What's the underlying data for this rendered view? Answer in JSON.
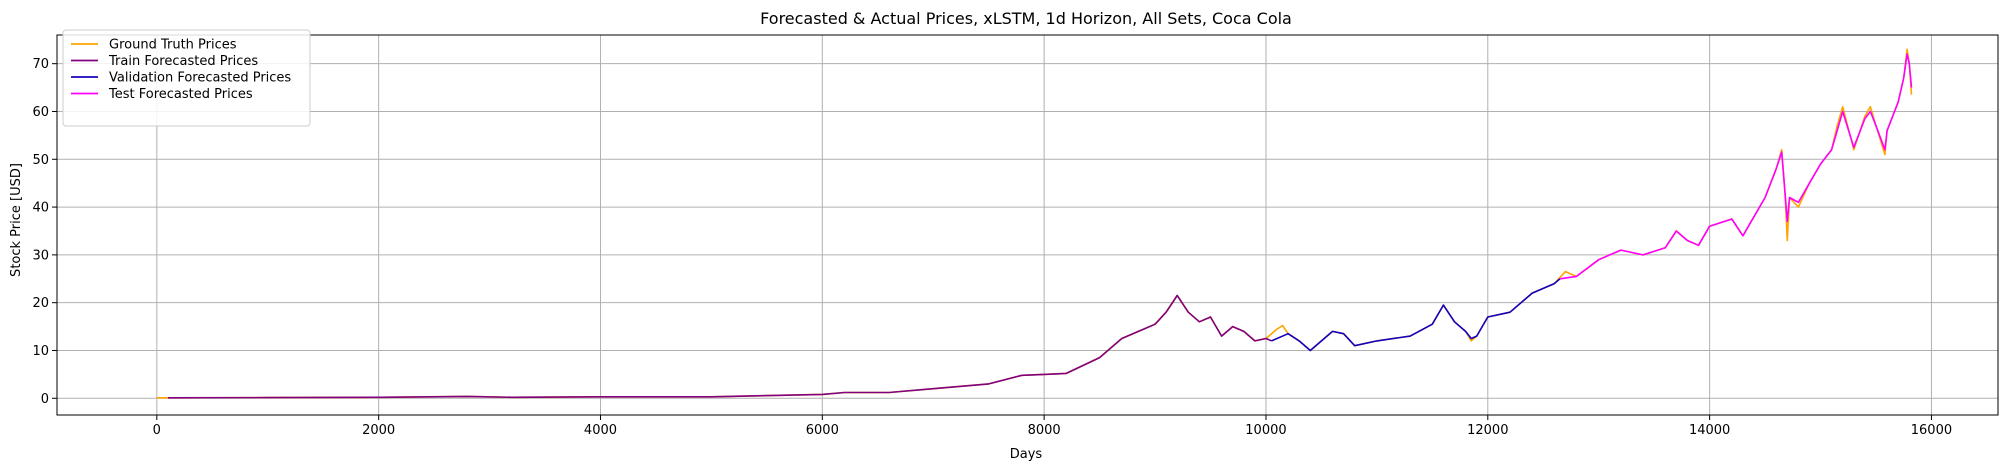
{
  "chart_data": {
    "type": "line",
    "title": "Forecasted & Actual Prices, xLSTM, 1d Horizon, All Sets, Coca Cola",
    "xlabel": "Days",
    "ylabel": "Stock Price [USD]",
    "xlim": [
      -900,
      16600
    ],
    "ylim": [
      -3.5,
      76
    ],
    "x_ticks": [
      0,
      2000,
      4000,
      6000,
      8000,
      10000,
      12000,
      14000,
      16000
    ],
    "y_ticks": [
      0,
      10,
      20,
      30,
      40,
      50,
      60,
      70
    ],
    "grid": true,
    "legend_position": "top-left",
    "series": [
      {
        "name": "Ground Truth Prices",
        "color": "#FFA500",
        "points": [
          [
            0,
            0.1
          ],
          [
            150,
            0.1
          ],
          [
            1000,
            0.15
          ],
          [
            2000,
            0.2
          ],
          [
            2800,
            0.4
          ],
          [
            3200,
            0.2
          ],
          [
            4000,
            0.3
          ],
          [
            5000,
            0.3
          ],
          [
            6000,
            0.8
          ],
          [
            6200,
            1.2
          ],
          [
            6600,
            1.2
          ],
          [
            7000,
            2.0
          ],
          [
            7500,
            3.0
          ],
          [
            7800,
            4.8
          ],
          [
            8000,
            5.0
          ],
          [
            8200,
            5.2
          ],
          [
            8500,
            8.5
          ],
          [
            8700,
            12.5
          ],
          [
            8900,
            14.5
          ],
          [
            9000,
            15.5
          ],
          [
            9100,
            18.0
          ],
          [
            9200,
            21.5
          ],
          [
            9300,
            18.0
          ],
          [
            9400,
            16.0
          ],
          [
            9500,
            17.0
          ],
          [
            9600,
            13.0
          ],
          [
            9700,
            15.0
          ],
          [
            9800,
            14.0
          ],
          [
            9900,
            12.0
          ],
          [
            10000,
            12.5
          ],
          [
            10100,
            14.5
          ],
          [
            10150,
            15.2
          ],
          [
            10200,
            13.5
          ],
          [
            10300,
            12.0
          ],
          [
            10400,
            10.0
          ],
          [
            10600,
            14.0
          ],
          [
            10700,
            13.5
          ],
          [
            10800,
            11.0
          ],
          [
            11000,
            12.0
          ],
          [
            11300,
            13.0
          ],
          [
            11500,
            15.5
          ],
          [
            11600,
            19.5
          ],
          [
            11700,
            16.0
          ],
          [
            11800,
            14.0
          ],
          [
            11850,
            12.0
          ],
          [
            11900,
            13.0
          ],
          [
            12000,
            17.0
          ],
          [
            12200,
            18.0
          ],
          [
            12400,
            22.0
          ],
          [
            12600,
            24.0
          ],
          [
            12700,
            26.5
          ],
          [
            12800,
            25.5
          ],
          [
            13000,
            29.0
          ],
          [
            13200,
            31.0
          ],
          [
            13400,
            30.0
          ],
          [
            13600,
            31.5
          ],
          [
            13700,
            35.0
          ],
          [
            13800,
            33.0
          ],
          [
            13900,
            32.0
          ],
          [
            14000,
            36.0
          ],
          [
            14200,
            37.5
          ],
          [
            14300,
            34.0
          ],
          [
            14500,
            42.0
          ],
          [
            14600,
            48.0
          ],
          [
            14650,
            52.0
          ],
          [
            14680,
            43.0
          ],
          [
            14700,
            33.0
          ],
          [
            14720,
            42.0
          ],
          [
            14800,
            40.0
          ],
          [
            14900,
            45.0
          ],
          [
            15000,
            49.0
          ],
          [
            15100,
            52.0
          ],
          [
            15150,
            57.0
          ],
          [
            15200,
            61.0
          ],
          [
            15300,
            52.0
          ],
          [
            15400,
            59.0
          ],
          [
            15450,
            61.0
          ],
          [
            15500,
            57.0
          ],
          [
            15580,
            51.0
          ],
          [
            15600,
            56.0
          ],
          [
            15700,
            62.0
          ],
          [
            15750,
            67.0
          ],
          [
            15780,
            73.0
          ],
          [
            15800,
            70.0
          ],
          [
            15820,
            63.5
          ]
        ]
      },
      {
        "name": "Train Forecasted Prices",
        "color": "#800080",
        "points": [
          [
            100,
            0.1
          ],
          [
            1000,
            0.15
          ],
          [
            2000,
            0.2
          ],
          [
            2800,
            0.4
          ],
          [
            3200,
            0.2
          ],
          [
            4000,
            0.3
          ],
          [
            5000,
            0.3
          ],
          [
            6000,
            0.8
          ],
          [
            6200,
            1.2
          ],
          [
            6600,
            1.2
          ],
          [
            7000,
            2.0
          ],
          [
            7500,
            3.0
          ],
          [
            7800,
            4.8
          ],
          [
            8000,
            5.0
          ],
          [
            8200,
            5.2
          ],
          [
            8500,
            8.5
          ],
          [
            8700,
            12.5
          ],
          [
            8900,
            14.5
          ],
          [
            9000,
            15.5
          ],
          [
            9100,
            18.0
          ],
          [
            9200,
            21.5
          ],
          [
            9300,
            18.0
          ],
          [
            9400,
            16.0
          ],
          [
            9500,
            17.0
          ],
          [
            9600,
            13.0
          ],
          [
            9700,
            15.0
          ],
          [
            9800,
            14.0
          ],
          [
            9900,
            12.0
          ],
          [
            10000,
            12.5
          ],
          [
            10050,
            12.0
          ]
        ]
      },
      {
        "name": "Validation Forecasted Prices",
        "color": "#1500C0",
        "points": [
          [
            10050,
            12.0
          ],
          [
            10200,
            13.5
          ],
          [
            10300,
            12.0
          ],
          [
            10400,
            10.0
          ],
          [
            10600,
            14.0
          ],
          [
            10700,
            13.5
          ],
          [
            10800,
            11.0
          ],
          [
            11000,
            12.0
          ],
          [
            11300,
            13.0
          ],
          [
            11500,
            15.5
          ],
          [
            11600,
            19.5
          ],
          [
            11700,
            16.0
          ],
          [
            11800,
            14.0
          ],
          [
            11850,
            12.5
          ],
          [
            11900,
            13.0
          ],
          [
            12000,
            17.0
          ],
          [
            12200,
            18.0
          ],
          [
            12400,
            22.0
          ],
          [
            12600,
            24.0
          ],
          [
            12650,
            25.0
          ]
        ]
      },
      {
        "name": "Test Forecasted Prices",
        "color": "#FF00FF",
        "points": [
          [
            12650,
            25.0
          ],
          [
            12800,
            25.5
          ],
          [
            13000,
            29.0
          ],
          [
            13200,
            31.0
          ],
          [
            13400,
            30.0
          ],
          [
            13600,
            31.5
          ],
          [
            13700,
            35.0
          ],
          [
            13800,
            33.0
          ],
          [
            13900,
            32.0
          ],
          [
            14000,
            36.0
          ],
          [
            14200,
            37.5
          ],
          [
            14300,
            34.0
          ],
          [
            14500,
            42.0
          ],
          [
            14600,
            48.0
          ],
          [
            14650,
            51.5
          ],
          [
            14680,
            43.0
          ],
          [
            14700,
            37.0
          ],
          [
            14720,
            42.0
          ],
          [
            14800,
            41.0
          ],
          [
            14900,
            45.0
          ],
          [
            15000,
            49.0
          ],
          [
            15100,
            52.0
          ],
          [
            15150,
            56.0
          ],
          [
            15200,
            60.0
          ],
          [
            15300,
            52.5
          ],
          [
            15400,
            58.5
          ],
          [
            15450,
            60.0
          ],
          [
            15500,
            57.0
          ],
          [
            15580,
            52.0
          ],
          [
            15600,
            56.0
          ],
          [
            15700,
            62.0
          ],
          [
            15750,
            67.0
          ],
          [
            15780,
            72.0
          ],
          [
            15800,
            70.0
          ],
          [
            15820,
            65.0
          ]
        ]
      }
    ]
  }
}
